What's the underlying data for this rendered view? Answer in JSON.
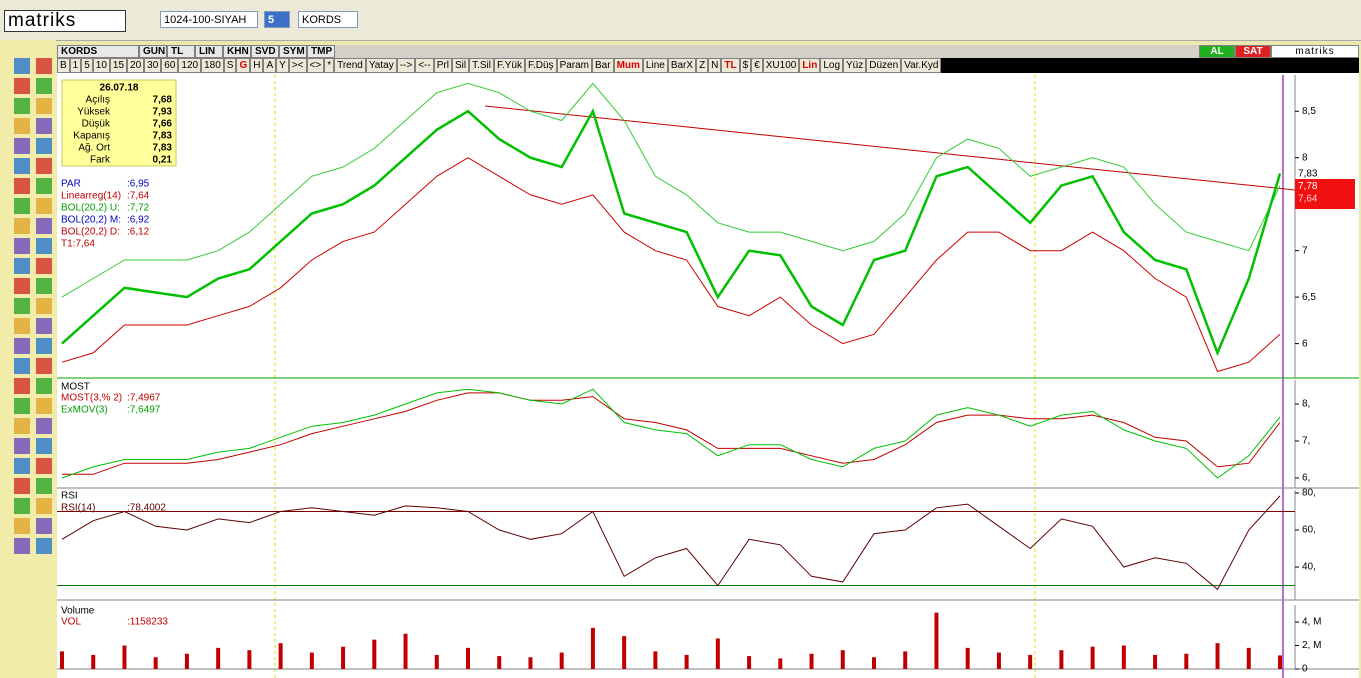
{
  "toolbar": {
    "logo": "matriks",
    "template": "1024-100-SIYAH",
    "period": "5",
    "symbol": "KORDS"
  },
  "window": {
    "tabs": [
      "KORDS",
      "GUN",
      "TL",
      "LIN",
      "KHN",
      "SVD",
      "SYM",
      "TMP"
    ],
    "buy": "AL",
    "sell": "SAT",
    "brand": "matriks",
    "buttons": [
      "B",
      "1",
      "5",
      "10",
      "15",
      "20",
      "30",
      "60",
      "120",
      "180",
      "S",
      "G",
      "H",
      "A",
      "Y",
      "><",
      "<>",
      "*",
      "Trend",
      "Yatay",
      "-->",
      "<--",
      "Prl",
      "Sil",
      "T.Sil",
      "F.Yük",
      "F.Düş",
      "Param",
      "Bar",
      "Mum",
      "Line",
      "BarX",
      "Z",
      "N",
      "TL",
      "$",
      "€",
      "XU100",
      "Lin",
      "Log",
      "Yüz",
      "Düzen",
      "Var.Kyd"
    ]
  },
  "price_panel": {
    "info": {
      "date": "26.07.18",
      "rows": [
        [
          "Açılış",
          "7,68"
        ],
        [
          "Yüksek",
          "7,93"
        ],
        [
          "Düşük",
          "7,66"
        ],
        [
          "Kapanış",
          "7,83"
        ],
        [
          "Ağ. Ort",
          "7,83"
        ],
        [
          "Fark",
          "0,21"
        ]
      ]
    },
    "legend": [
      [
        "PAR",
        ":6,95"
      ],
      [
        "Linearreg(14)",
        ":7,64"
      ],
      [
        "BOL(20,2) U:",
        ":7,72"
      ],
      [
        "BOL(20,2) M:",
        ":6,92"
      ],
      [
        "BOL(20,2) D:",
        ":6,12"
      ],
      [
        "T1:7,64",
        ""
      ]
    ],
    "price_labels": [
      "7,83",
      "7,78",
      "7,64"
    ],
    "ylim": [
      5.63,
      8.89
    ],
    "yticks": [
      {
        "value": 8.5,
        "label": "8,5"
      },
      8,
      7,
      {
        "value": 6.5,
        "label": "6,5"
      },
      6
    ],
    "close": [
      6.0,
      6.3,
      6.6,
      6.55,
      6.5,
      6.7,
      6.8,
      7.1,
      7.4,
      7.5,
      7.7,
      8.0,
      8.3,
      8.5,
      8.2,
      8.0,
      7.9,
      8.5,
      7.4,
      7.3,
      7.2,
      6.5,
      7.0,
      6.95,
      6.4,
      6.2,
      6.9,
      7.0,
      7.8,
      7.9,
      7.6,
      7.3,
      7.7,
      7.8,
      7.2,
      6.9,
      6.8,
      5.9,
      6.7,
      7.83
    ],
    "bol_upper": [
      6.5,
      6.7,
      6.9,
      6.9,
      6.9,
      7.0,
      7.2,
      7.5,
      7.8,
      7.9,
      8.1,
      8.4,
      8.7,
      8.8,
      8.7,
      8.5,
      8.4,
      8.8,
      8.4,
      7.8,
      7.6,
      7.3,
      7.2,
      7.2,
      7.1,
      7.0,
      7.1,
      7.4,
      8.0,
      8.2,
      8.1,
      7.8,
      7.9,
      8.0,
      7.9,
      7.5,
      7.2,
      7.1,
      7.0,
      7.7
    ],
    "bol_lower": [
      5.8,
      5.9,
      6.2,
      6.2,
      6.2,
      6.3,
      6.4,
      6.6,
      6.9,
      7.1,
      7.2,
      7.5,
      7.8,
      8.0,
      7.8,
      7.6,
      7.5,
      7.6,
      7.2,
      7.0,
      6.9,
      6.4,
      6.3,
      6.5,
      6.2,
      6.0,
      6.1,
      6.5,
      6.9,
      7.2,
      7.2,
      7.0,
      7.0,
      7.2,
      7.0,
      6.7,
      6.5,
      5.7,
      5.8,
      6.1
    ]
  },
  "most_panel": {
    "title": "MOST",
    "legend": [
      [
        "MOST(3,% 2)",
        ":7,4967"
      ],
      [
        "ExMOV(3)",
        ":7,6497"
      ]
    ],
    "ylim": [
      5.73,
      8.65
    ],
    "yticks": [
      {
        "value": 8,
        "label": "8,"
      },
      {
        "value": 7,
        "label": "7,"
      },
      {
        "value": 6,
        "label": "6,"
      }
    ],
    "most": [
      6.1,
      6.1,
      6.4,
      6.4,
      6.4,
      6.5,
      6.7,
      6.9,
      7.2,
      7.4,
      7.6,
      7.8,
      8.1,
      8.3,
      8.3,
      8.1,
      8.1,
      8.2,
      7.6,
      7.5,
      7.3,
      6.8,
      6.8,
      6.8,
      6.6,
      6.4,
      6.5,
      6.9,
      7.5,
      7.7,
      7.7,
      7.6,
      7.6,
      7.7,
      7.5,
      7.1,
      7.0,
      6.3,
      6.4,
      7.5
    ],
    "exmov": [
      6.0,
      6.3,
      6.5,
      6.5,
      6.5,
      6.7,
      6.8,
      7.1,
      7.4,
      7.5,
      7.7,
      8.0,
      8.3,
      8.4,
      8.3,
      8.1,
      8.0,
      8.4,
      7.5,
      7.3,
      7.2,
      6.6,
      6.9,
      6.9,
      6.5,
      6.3,
      6.8,
      7.0,
      7.7,
      7.9,
      7.7,
      7.4,
      7.7,
      7.8,
      7.3,
      7.0,
      6.8,
      6.0,
      6.6,
      7.65
    ]
  },
  "rsi_panel": {
    "title": "RSI",
    "legend": [
      [
        "RSI(14)",
        ":78,4002"
      ]
    ],
    "ylim": [
      22.2,
      81.6
    ],
    "yticks": [
      {
        "value": 80,
        "label": "80,"
      },
      {
        "value": 60,
        "label": "60,"
      },
      {
        "value": 40,
        "label": "40,"
      }
    ],
    "levels": [
      70,
      30
    ],
    "rsi": [
      55,
      65,
      70,
      62,
      60,
      66,
      64,
      70,
      72,
      70,
      68,
      73,
      72,
      70,
      60,
      55,
      58,
      70,
      35,
      45,
      50,
      30,
      55,
      52,
      35,
      32,
      58,
      60,
      72,
      74,
      62,
      50,
      66,
      62,
      40,
      45,
      42,
      28,
      60,
      78.4
    ]
  },
  "volume_panel": {
    "title": "Volume",
    "legend": [
      [
        "VOL",
        ":1158233"
      ]
    ],
    "ylim": [
      0,
      5450000
    ],
    "yticks": [
      {
        "value": 4000000,
        "label": "4, M"
      },
      {
        "value": 2000000,
        "label": "2, M"
      },
      {
        "value": 0,
        "label": "0"
      }
    ],
    "volume": [
      1500000,
      1200000,
      2000000,
      1000000,
      1300000,
      1800000,
      1600000,
      2200000,
      1400000,
      1900000,
      2500000,
      3000000,
      1200000,
      1800000,
      1100000,
      1000000,
      1400000,
      3500000,
      2800000,
      1500000,
      1200000,
      2600000,
      1100000,
      900000,
      1300000,
      1600000,
      1000000,
      1500000,
      4800000,
      1800000,
      1400000,
      1200000,
      1600000,
      1900000,
      2000000,
      1200000,
      1300000,
      2200000,
      1800000,
      1158233
    ]
  }
}
